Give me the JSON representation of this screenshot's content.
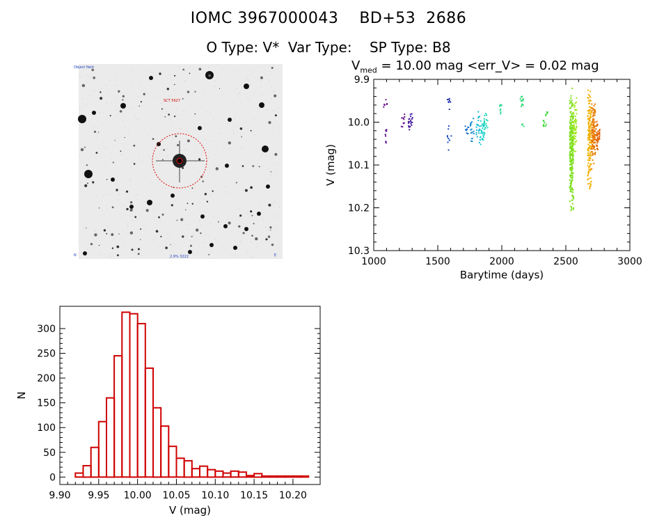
{
  "header": {
    "title_line1": "IOMC 3967000043    BD+53  2686",
    "title_line2": "O Type: V*  Var Type:    SP Type: B8"
  },
  "finder": {
    "top_left_label": "Object field",
    "target_label": "SCT 5627",
    "bottom_label": "2.9% 3222",
    "bottom_left_label": "N",
    "bottom_right_label": "E"
  },
  "lightcurve_header": {
    "prefix": "V",
    "sub": "med",
    "rest": " = 10.00 mag <err_V> = 0.02 mag"
  },
  "chart_data": [
    {
      "type": "scatter",
      "title": "V_med = 10.00 mag <err_V> = 0.02 mag",
      "xlabel": "Barytime (days)",
      "ylabel": "V (mag)",
      "xlim": [
        1000,
        3000
      ],
      "ylim": [
        10.3,
        9.9
      ],
      "x_ticks": [
        "1000",
        "1500",
        "2000",
        "2500",
        "3000"
      ],
      "y_ticks": [
        "9.9",
        "10.0",
        "10.1",
        "10.2",
        "10.3"
      ],
      "y_tick_values": [
        9.9,
        10.0,
        10.1,
        10.2,
        10.3
      ],
      "x_tick_values": [
        1000,
        1500,
        2000,
        2500,
        3000
      ],
      "groups": [
        {
          "x": 1085,
          "ymin": 9.94,
          "ymax": 9.97,
          "n": 6,
          "color": "#6a0f8e"
        },
        {
          "x": 1090,
          "ymin": 10.01,
          "ymax": 10.05,
          "n": 8,
          "color": "#5a0f8e"
        },
        {
          "x": 1225,
          "ymin": 9.97,
          "ymax": 10.02,
          "n": 10,
          "color": "#6a0f8e"
        },
        {
          "x": 1280,
          "ymin": 9.98,
          "ymax": 10.02,
          "n": 14,
          "color": "#4b1a9e"
        },
        {
          "x": 1290,
          "ymin": 9.97,
          "ymax": 10.0,
          "n": 6,
          "color": "#3b1aa8"
        },
        {
          "x": 1580,
          "ymin": 9.93,
          "ymax": 9.97,
          "n": 8,
          "color": "#2233aa"
        },
        {
          "x": 1585,
          "ymin": 10.0,
          "ymax": 10.07,
          "n": 10,
          "color": "#1f4fbf"
        },
        {
          "x": 1720,
          "ymin": 10.0,
          "ymax": 10.03,
          "n": 10,
          "color": "#1a6fc8"
        },
        {
          "x": 1760,
          "ymin": 9.98,
          "ymax": 10.05,
          "n": 18,
          "color": "#1a8fd0"
        },
        {
          "x": 1810,
          "ymin": 9.97,
          "ymax": 10.05,
          "n": 22,
          "color": "#18b8d8"
        },
        {
          "x": 1840,
          "ymin": 9.98,
          "ymax": 10.06,
          "n": 26,
          "color": "#1ad0d0"
        },
        {
          "x": 1870,
          "ymin": 9.96,
          "ymax": 10.04,
          "n": 20,
          "color": "#1ad6b8"
        },
        {
          "x": 1990,
          "ymin": 9.95,
          "ymax": 9.98,
          "n": 8,
          "color": "#20d890"
        },
        {
          "x": 2150,
          "ymin": 9.93,
          "ymax": 9.97,
          "n": 12,
          "color": "#22d86a"
        },
        {
          "x": 2160,
          "ymin": 10.0,
          "ymax": 10.01,
          "n": 3,
          "color": "#22d86a"
        },
        {
          "x": 2330,
          "ymin": 9.99,
          "ymax": 10.02,
          "n": 8,
          "color": "#40d840"
        },
        {
          "x": 2350,
          "ymin": 9.97,
          "ymax": 9.99,
          "n": 5,
          "color": "#40d840"
        },
        {
          "x": 2540,
          "ymin": 9.91,
          "ymax": 10.22,
          "n": 260,
          "color": "#7ee020"
        },
        {
          "x": 2565,
          "ymin": 9.94,
          "ymax": 10.08,
          "n": 60,
          "color": "#9ee81a"
        },
        {
          "x": 2680,
          "ymin": 9.9,
          "ymax": 10.17,
          "n": 160,
          "color": "#f0b000"
        },
        {
          "x": 2710,
          "ymin": 9.95,
          "ymax": 10.11,
          "n": 120,
          "color": "#e87a00"
        },
        {
          "x": 2745,
          "ymin": 9.99,
          "ymax": 10.07,
          "n": 40,
          "color": "#e06000"
        }
      ]
    },
    {
      "type": "bar",
      "subtype": "histogram",
      "xlabel": "V (mag)",
      "ylabel": "N",
      "xlim": [
        9.9,
        10.235
      ],
      "ylim": [
        -15,
        345
      ],
      "x_ticks": [
        "9.90",
        "9.95",
        "10.00",
        "10.05",
        "10.10",
        "10.15",
        "10.20"
      ],
      "x_tick_values": [
        9.9,
        9.95,
        10.0,
        10.05,
        10.1,
        10.15,
        10.2
      ],
      "y_ticks": [
        "0",
        "50",
        "100",
        "150",
        "200",
        "250",
        "300"
      ],
      "y_tick_values": [
        0,
        50,
        100,
        150,
        200,
        250,
        300
      ],
      "bin_width": 0.01,
      "bin_starts": [
        9.9,
        9.91,
        9.92,
        9.93,
        9.94,
        9.95,
        9.96,
        9.97,
        9.98,
        9.99,
        10.0,
        10.01,
        10.02,
        10.03,
        10.04,
        10.05,
        10.06,
        10.07,
        10.08,
        10.09,
        10.1,
        10.11,
        10.12,
        10.13,
        10.14,
        10.15,
        10.16,
        10.17,
        10.18,
        10.19,
        10.2,
        10.21
      ],
      "values": [
        0,
        0,
        8,
        23,
        60,
        112,
        160,
        245,
        333,
        330,
        310,
        220,
        140,
        103,
        62,
        38,
        33,
        17,
        22,
        15,
        12,
        8,
        12,
        10,
        3,
        7,
        2,
        2,
        2,
        2,
        2,
        2
      ],
      "color": "#d00000"
    }
  ]
}
